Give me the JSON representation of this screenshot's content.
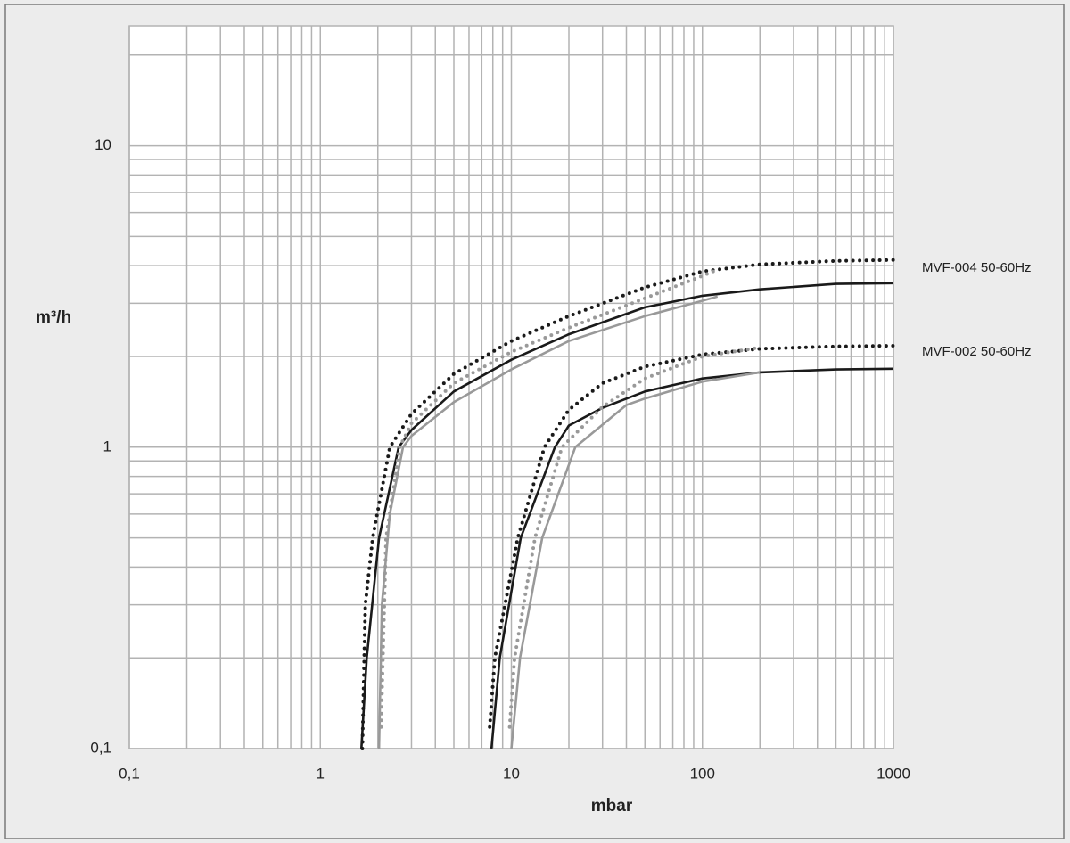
{
  "chart_data": {
    "type": "line",
    "x_label": "mbar",
    "y_label": "m³/h",
    "xscale": "log",
    "yscale": "log",
    "grid": true,
    "xlim": [
      0.1,
      1000
    ],
    "ylim": [
      0.1,
      25
    ],
    "xticks": [
      {
        "value": 0.1,
        "label": "0,1"
      },
      1,
      10,
      100,
      1000
    ],
    "yticks": [
      {
        "value": 0.1,
        "label": "0,1"
      },
      1,
      10
    ],
    "x_minor_ticks": [
      0.2,
      0.3,
      0.4,
      0.5,
      0.6,
      0.7,
      0.8,
      0.9,
      2,
      3,
      4,
      5,
      6,
      7,
      8,
      9,
      20,
      30,
      40,
      50,
      60,
      70,
      80,
      90,
      200,
      300,
      400,
      500,
      600,
      700,
      800,
      900
    ],
    "y_minor_ticks": [
      0.2,
      0.3,
      0.4,
      0.5,
      0.6,
      0.7,
      0.8,
      0.9,
      2,
      3,
      4,
      5,
      6,
      7,
      8,
      9,
      20
    ],
    "annotations": [
      "MVF-004 50-60Hz",
      "MVF-002 50-60Hz"
    ],
    "series": [
      {
        "color": "#1a1a1a",
        "dash": "solid",
        "x": [
          1.64,
          1.75,
          2.03,
          2.57,
          3,
          5,
          10,
          20,
          50,
          100,
          200,
          500,
          1000
        ],
        "values": [
          0.1,
          0.2,
          0.5,
          1,
          1.14,
          1.53,
          1.95,
          2.37,
          2.91,
          3.18,
          3.34,
          3.48,
          3.5
        ]
      },
      {
        "color": "#999999",
        "dash": "solid",
        "x": [
          2.03,
          2.1,
          2.31,
          2.71,
          3,
          5,
          10,
          20,
          50,
          100,
          120
        ],
        "values": [
          0.1,
          0.3,
          0.6,
          1,
          1.09,
          1.41,
          1.81,
          2.25,
          2.72,
          3.06,
          3.16
        ]
      },
      {
        "color": "#1a1a1a",
        "dash": "dotted",
        "x": [
          1.66,
          1.72,
          1.88,
          2.31,
          3,
          5,
          10,
          20,
          50,
          100,
          200,
          500,
          1000
        ],
        "values": [
          0.1,
          0.3,
          0.5,
          1,
          1.29,
          1.75,
          2.25,
          2.72,
          3.39,
          3.83,
          4.04,
          4.15,
          4.18
        ]
      },
      {
        "color": "#999999",
        "dash": "dotted",
        "x": [
          2.08,
          2.21,
          2.6,
          3,
          5,
          10,
          20,
          50,
          100,
          120
        ],
        "values": [
          0.118,
          0.5,
          1,
          1.2,
          1.63,
          2.07,
          2.49,
          3.12,
          3.7,
          3.88
        ]
      },
      {
        "color": "#1a1a1a",
        "dash": "solid",
        "x": [
          7.87,
          8.7,
          11.2,
          16.9,
          20,
          30,
          50,
          100,
          200,
          500,
          1000
        ],
        "values": [
          0.1,
          0.2,
          0.5,
          1,
          1.18,
          1.35,
          1.53,
          1.69,
          1.77,
          1.81,
          1.82
        ]
      },
      {
        "color": "#999999",
        "dash": "solid",
        "x": [
          10,
          11.1,
          14.5,
          21.6,
          40,
          50,
          100,
          200
        ],
        "values": [
          0.1,
          0.2,
          0.5,
          1,
          1.38,
          1.45,
          1.65,
          1.77
        ]
      },
      {
        "color": "#1a1a1a",
        "dash": "dotted",
        "x": [
          7.7,
          8.2,
          10.8,
          14.9,
          20,
          30,
          50,
          100,
          200,
          500,
          1000
        ],
        "values": [
          0.118,
          0.2,
          0.5,
          1,
          1.33,
          1.63,
          1.85,
          2.03,
          2.12,
          2.16,
          2.17
        ]
      },
      {
        "color": "#999999",
        "dash": "dotted",
        "x": [
          9.8,
          10.4,
          13.3,
          18.4,
          30,
          50,
          100,
          200
        ],
        "values": [
          0.118,
          0.2,
          0.5,
          1,
          1.36,
          1.69,
          2.0,
          2.14
        ]
      }
    ]
  }
}
